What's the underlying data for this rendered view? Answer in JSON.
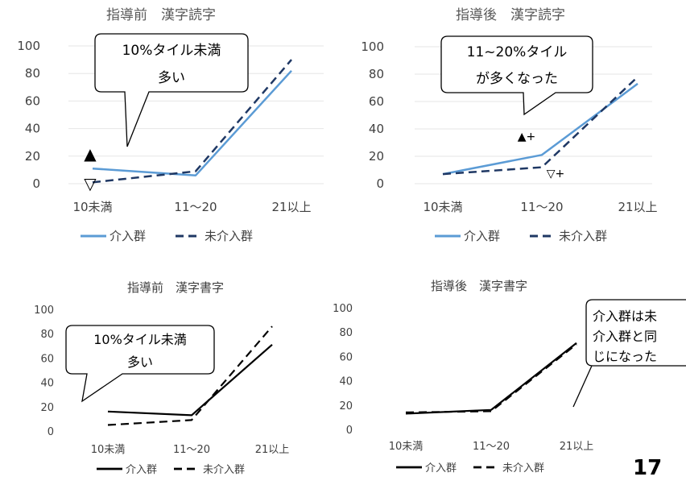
{
  "page_number": "17",
  "chart_data": [
    {
      "type": "line",
      "title": "指導前　漢字読字",
      "categories": [
        "10未満",
        "11〜20",
        "21以上"
      ],
      "yticks": [
        "0",
        "20",
        "40",
        "60",
        "80",
        "100"
      ],
      "ylim": [
        0,
        100
      ],
      "style": "color",
      "series": [
        {
          "name": "介入群",
          "values": [
            11,
            6,
            82
          ],
          "color": "#5b9bd5",
          "dash": false
        },
        {
          "name": "未介入群",
          "values": [
            1,
            9,
            90
          ],
          "color": "#1f3864",
          "dash": true
        }
      ],
      "markers": [
        "▲",
        "▽"
      ],
      "callout_lines": [
        "10%タイル未満",
        "多い"
      ]
    },
    {
      "type": "line",
      "title": "指導後　漢字読字",
      "categories": [
        "10未満",
        "11〜20",
        "21以上"
      ],
      "yticks": [
        "0",
        "20",
        "40",
        "60",
        "80",
        "100"
      ],
      "ylim": [
        0,
        100
      ],
      "style": "color",
      "series": [
        {
          "name": "介入群",
          "values": [
            7,
            21,
            73
          ],
          "color": "#5b9bd5",
          "dash": false
        },
        {
          "name": "未介入群",
          "values": [
            7,
            12,
            78
          ],
          "color": "#1f3864",
          "dash": true
        }
      ],
      "markers": [
        "▲+",
        "▽+"
      ],
      "callout_lines": [
        "11~20%タイル",
        "が多くなった"
      ]
    },
    {
      "type": "line",
      "title": "指導前　漢字書字",
      "categories": [
        "10未満",
        "11〜20",
        "21以上"
      ],
      "yticks": [
        "0",
        "20",
        "40",
        "60",
        "80",
        "100"
      ],
      "ylim": [
        0,
        100
      ],
      "style": "black",
      "series": [
        {
          "name": "介入群",
          "values": [
            16,
            13,
            71
          ],
          "color": "#000000",
          "dash": false
        },
        {
          "name": "未介入群",
          "values": [
            5,
            9,
            86
          ],
          "color": "#000000",
          "dash": true
        }
      ],
      "callout_lines": [
        "10%タイル未満",
        "多い"
      ]
    },
    {
      "type": "line",
      "title": "指導後　漢字書字",
      "categories": [
        "10未満",
        "11〜20",
        "21以上"
      ],
      "yticks": [
        "0",
        "20",
        "40",
        "60",
        "80",
        "100"
      ],
      "ylim": [
        0,
        100
      ],
      "style": "black",
      "series": [
        {
          "name": "介入群",
          "values": [
            13,
            16,
            71
          ],
          "color": "#000000",
          "dash": false
        },
        {
          "name": "未介入群",
          "values": [
            14,
            15,
            70
          ],
          "color": "#000000",
          "dash": true
        }
      ],
      "callout_lines": [
        "介入群は未",
        "介入群と同",
        "じになった"
      ]
    }
  ]
}
